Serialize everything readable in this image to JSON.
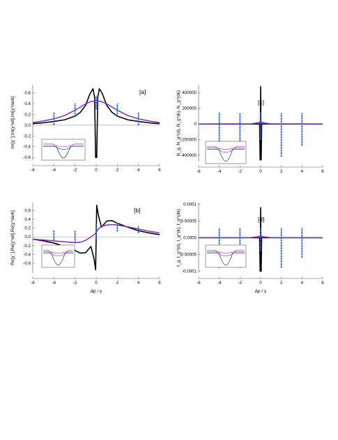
{
  "colors": {
    "black": "#000000",
    "blue": "#1a44cc",
    "purple": "#7a2ad6",
    "magenta": "#e0287a",
    "spike": "#2a62d8",
    "axis": "#555555",
    "zero_line": "#9a9a9a"
  },
  "chart_data": [
    {
      "id": "a",
      "type": "line",
      "label": "[a]",
      "ylabel": "Im[χ⁻],Im[χ^eit],Im[χ^dark]",
      "xlabel": "",
      "xlim": [
        -6,
        6
      ],
      "ylim": [
        -0.65,
        0.75
      ],
      "xticks": [
        -6,
        -4,
        -2,
        0,
        2,
        4,
        6
      ],
      "yticks": [
        -0.6,
        -0.4,
        -0.2,
        0.0,
        0.2,
        0.4,
        0.6
      ],
      "ytick_labels": [
        "-0.6",
        "-0.4",
        "-0.2",
        "0.0",
        "0.2",
        "0.4",
        "0.6"
      ],
      "series": [
        {
          "color": "black",
          "x": [
            -6,
            -5,
            -4,
            -3,
            -2,
            -1.5,
            -1,
            -0.6,
            -0.3,
            -0.15,
            -0.05,
            0.05,
            0.15,
            0.3,
            0.6,
            1,
            1.5,
            2,
            3,
            4,
            5,
            6
          ],
          "y": [
            0.03,
            0.045,
            0.07,
            0.1,
            0.17,
            0.24,
            0.37,
            0.58,
            0.68,
            0.52,
            -0.6,
            -0.6,
            0.52,
            0.68,
            0.58,
            0.37,
            0.24,
            0.17,
            0.1,
            0.07,
            0.045,
            0.03
          ]
        },
        {
          "color": "blue",
          "x": [
            -6,
            -5,
            -4,
            -3,
            -2,
            -1,
            -0.5,
            0,
            0.5,
            1,
            2,
            3,
            4,
            5,
            6
          ],
          "y": [
            0.05,
            0.08,
            0.12,
            0.18,
            0.28,
            0.4,
            0.44,
            0.46,
            0.44,
            0.4,
            0.28,
            0.18,
            0.12,
            0.08,
            0.05
          ]
        },
        {
          "color": "purple",
          "x": [
            -6,
            -5,
            -4,
            -3,
            -2,
            -1,
            -0.5,
            0,
            0.5,
            1,
            2,
            3,
            4,
            5,
            6
          ],
          "y": [
            0.048,
            0.078,
            0.118,
            0.178,
            0.278,
            0.398,
            0.438,
            0.455,
            0.438,
            0.398,
            0.278,
            0.178,
            0.118,
            0.078,
            0.048
          ]
        }
      ],
      "spikes": [
        {
          "x": -4,
          "y0": 0.0,
          "y1": 0.24
        },
        {
          "x": -2,
          "y0": 0.15,
          "y1": 0.41
        },
        {
          "x": 0,
          "y0": 0.3,
          "y1": 0.55
        },
        {
          "x": 2,
          "y0": 0.15,
          "y1": 0.41
        },
        {
          "x": 4,
          "y0": 0.0,
          "y1": 0.24
        }
      ]
    },
    {
      "id": "b",
      "type": "line",
      "label": "[b]",
      "ylabel": "Re[χ⁻],Re[χ^eit],Re[χ^dark]",
      "xlabel": "Δp / γ",
      "xlim": [
        -6,
        6
      ],
      "ylim": [
        -0.82,
        0.78
      ],
      "xticks": [
        -6,
        -4,
        -2,
        0,
        2,
        4,
        6
      ],
      "yticks": [
        -0.6,
        -0.4,
        -0.2,
        0.0,
        0.2,
        0.4,
        0.6
      ],
      "ytick_labels": [
        "-0.6",
        "-0.4",
        "-0.2",
        "0.0",
        "0.2",
        "0.4",
        "0.6"
      ],
      "series": [
        {
          "color": "black",
          "x": [
            -6,
            -5,
            -4,
            -3,
            -2,
            -1.5,
            -1,
            -0.5,
            -0.2,
            -0.05,
            0.05,
            0.2,
            0.5,
            1,
            1.5,
            2,
            3,
            4,
            5,
            6
          ],
          "y": [
            -0.05,
            -0.09,
            -0.14,
            -0.22,
            -0.31,
            -0.37,
            -0.36,
            -0.22,
            -0.5,
            -0.75,
            0.72,
            0.5,
            0.22,
            0.36,
            0.37,
            0.31,
            0.22,
            0.14,
            0.09,
            0.05
          ]
        },
        {
          "color": "blue",
          "x": [
            -6,
            -5,
            -4,
            -3,
            -2,
            -1.5,
            -1,
            -0.5,
            -0.2,
            0,
            0.2,
            0.5,
            1,
            1.5,
            2,
            3,
            4,
            5,
            6
          ],
          "y": [
            -0.05,
            -0.07,
            -0.09,
            -0.11,
            -0.13,
            -0.12,
            -0.08,
            0.0,
            0.05,
            0.1,
            0.18,
            0.24,
            0.27,
            0.28,
            0.27,
            0.23,
            0.18,
            0.13,
            0.09
          ]
        },
        {
          "color": "purple",
          "x": [
            -6,
            -5,
            -4,
            -3,
            -2,
            -1.5,
            -1,
            -0.5,
            -0.2,
            0,
            0.2,
            0.5,
            1,
            1.5,
            2,
            3,
            4,
            5,
            6
          ],
          "y": [
            -0.052,
            -0.072,
            -0.092,
            -0.112,
            -0.132,
            -0.122,
            -0.082,
            -0.002,
            0.048,
            0.098,
            0.178,
            0.238,
            0.268,
            0.278,
            0.268,
            0.228,
            0.178,
            0.128,
            0.088
          ]
        }
      ],
      "spikes": [
        {
          "x": -4,
          "y0": -0.08,
          "y1": 0.16
        },
        {
          "x": -2,
          "y0": -0.15,
          "y1": 0.14
        },
        {
          "x": 0,
          "y0": -0.05,
          "y1": 0.3
        },
        {
          "x": 2,
          "y0": 0.12,
          "y1": 0.32
        },
        {
          "x": 4,
          "y0": 0.08,
          "y1": 0.24
        }
      ]
    },
    {
      "id": "c",
      "type": "line",
      "label": "[c]",
      "ylabel": "N_g, N_g^(d), N_g^(k), N_g^(dk)",
      "xlabel": "",
      "xlim": [
        -6,
        6
      ],
      "ylim": [
        -480000,
        500000
      ],
      "xticks": [
        -6,
        -4,
        -2,
        0,
        2,
        4,
        6
      ],
      "yticks": [
        -400000,
        -200000,
        0,
        200000,
        400000
      ],
      "ytick_labels": [
        "-400000",
        "-200000",
        "0",
        "200000",
        "400000"
      ],
      "series": [
        {
          "color": "black",
          "x": [
            -6,
            -0.1,
            -0.05,
            0,
            0.05,
            0.1,
            6
          ],
          "y": [
            0,
            0,
            -460000,
            480000,
            -460000,
            0,
            0
          ]
        },
        {
          "color": "blue",
          "x": [
            -6,
            -1,
            -0.3,
            0,
            0.3,
            1,
            6
          ],
          "y": [
            0,
            2000,
            15000,
            30000,
            15000,
            2000,
            0
          ]
        },
        {
          "color": "purple",
          "x": [
            -6,
            -1,
            -0.3,
            0,
            0.3,
            1,
            6
          ],
          "y": [
            0,
            1500,
            12000,
            25000,
            12000,
            1500,
            0
          ]
        }
      ],
      "spikes": [
        {
          "x": -4,
          "y0": -400000,
          "y1": 150000
        },
        {
          "x": -2,
          "y0": -400000,
          "y1": 140000
        },
        {
          "x": 0,
          "y0": -200000,
          "y1": 150000
        },
        {
          "x": 2,
          "y0": -420000,
          "y1": 140000
        },
        {
          "x": 4,
          "y0": -280000,
          "y1": 140000
        }
      ]
    },
    {
      "id": "d",
      "type": "line",
      "label": "[d]",
      "ylabel": "t_g, t_g^(d), t_g^(k), t_g^(dk)",
      "xlabel": "Δp / γ",
      "xlim": [
        -6,
        6
      ],
      "ylim": [
        -0.000105,
        0.000105
      ],
      "xticks": [
        -6,
        -4,
        -2,
        0,
        2,
        4,
        6
      ],
      "yticks": [
        -0.0001,
        -5e-05,
        0,
        5e-05,
        0.0001
      ],
      "ytick_labels": [
        "-0.0001",
        "-0.00005",
        "0.0000",
        "0.00005",
        "0.0001"
      ],
      "series": [
        {
          "color": "black",
          "x": [
            -6,
            -0.1,
            -0.05,
            0,
            0.05,
            0.1,
            6
          ],
          "y": [
            0,
            0,
            -0.0001,
            9e-05,
            -0.0001,
            0,
            0
          ]
        },
        {
          "color": "blue",
          "x": [
            -6,
            -1,
            -0.3,
            0,
            0.3,
            1,
            6
          ],
          "y": [
            0,
            5e-07,
            3e-06,
            6e-06,
            3e-06,
            5e-07,
            0
          ]
        },
        {
          "color": "purple",
          "x": [
            -6,
            -1,
            -0.3,
            0,
            0.3,
            1,
            6
          ],
          "y": [
            0,
            4e-07,
            2.5e-06,
            5e-06,
            2.5e-06,
            4e-07,
            0
          ]
        }
      ],
      "spikes": [
        {
          "x": -4,
          "y0": -9e-05,
          "y1": 3e-05
        },
        {
          "x": -2,
          "y0": -9e-05,
          "y1": 3e-05
        },
        {
          "x": 0,
          "y0": -4e-05,
          "y1": 3e-05
        },
        {
          "x": 2,
          "y0": -9e-05,
          "y1": 3e-05
        },
        {
          "x": 4,
          "y0": -6e-05,
          "y1": 3e-05
        }
      ]
    }
  ]
}
